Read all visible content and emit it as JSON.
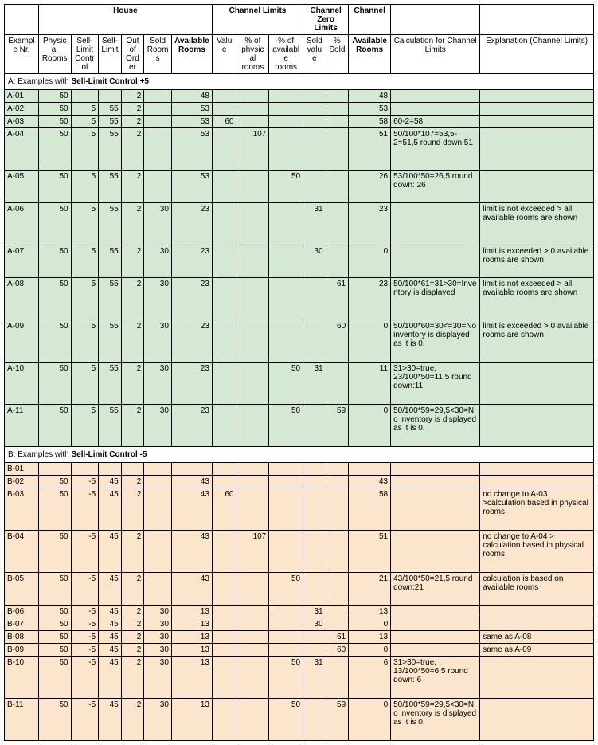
{
  "groupHeaders": {
    "house": "House",
    "channelLimits": "Channel Limits",
    "channelZeroLimits": "Channel Zero Limits",
    "channel": "Channel"
  },
  "columnHeaders": {
    "exampleNr": "Example Nr.",
    "physicalRooms": "Physical Rooms",
    "sellLimitControl": "Sell-Limit Control",
    "sellLimit": "Sell-Limit",
    "outOfOrder": "Out of Order",
    "soldRooms": "Sold Rooms",
    "availableRooms": "Available Rooms",
    "value": "Value",
    "pctOfPhysical": "% of physical rooms",
    "pctOfAvailable": "% of available rooms",
    "soldValue": "Sold value",
    "pctSold": "% Sold",
    "availableRoomsCh": "Available Rooms",
    "calculation": "Calculation for Channel Limits",
    "explanation": "Explanation (Channel Limits)"
  },
  "sectionA": {
    "title": "A: Examples with",
    "titleBold": "Sell-Limit Control +5"
  },
  "sectionB": {
    "title": "B: Examples with",
    "titleBold": "Sell-Limit Control -5"
  },
  "rowsA": [
    {
      "id": "A-01",
      "pr": "50",
      "slc": "",
      "sl": "",
      "ooo": "2",
      "sr": "",
      "ar": "48",
      "v": "",
      "pp": "",
      "pa": "",
      "sv": "",
      "ps": "",
      "arc": "48",
      "calc": "",
      "exp": ""
    },
    {
      "id": "A-02",
      "pr": "50",
      "slc": "5",
      "sl": "55",
      "ooo": "2",
      "sr": "",
      "ar": "53",
      "v": "",
      "pp": "",
      "pa": "",
      "sv": "",
      "ps": "",
      "arc": "53",
      "calc": "",
      "exp": ""
    },
    {
      "id": "A-03",
      "pr": "50",
      "slc": "5",
      "sl": "55",
      "ooo": "2",
      "sr": "",
      "ar": "53",
      "v": "60",
      "pp": "",
      "pa": "",
      "sv": "",
      "ps": "",
      "arc": "58",
      "calc": "60-2=58",
      "exp": ""
    },
    {
      "id": "A-04",
      "pr": "50",
      "slc": "5",
      "sl": "55",
      "ooo": "2",
      "sr": "",
      "ar": "53",
      "v": "",
      "pp": "107",
      "pa": "",
      "sv": "",
      "ps": "",
      "arc": "51",
      "calc": "50/100*107=53,5-2=51,5  round down:51",
      "exp": ""
    },
    {
      "id": "A-05",
      "pr": "50",
      "slc": "5",
      "sl": "55",
      "ooo": "2",
      "sr": "",
      "ar": "53",
      "v": "",
      "pp": "",
      "pa": "50",
      "sv": "",
      "ps": "",
      "arc": "26",
      "calc": "53/100*50=26,5 round down: 26",
      "exp": ""
    },
    {
      "id": "A-06",
      "pr": "50",
      "slc": "5",
      "sl": "55",
      "ooo": "2",
      "sr": "30",
      "ar": "23",
      "v": "",
      "pp": "",
      "pa": "",
      "sv": "31",
      "ps": "",
      "arc": "23",
      "calc": "",
      "exp": "limit is not exceeded > all available rooms are shown"
    },
    {
      "id": "A-07",
      "pr": "50",
      "slc": "5",
      "sl": "55",
      "ooo": "2",
      "sr": "30",
      "ar": "23",
      "v": "",
      "pp": "",
      "pa": "",
      "sv": "30",
      "ps": "",
      "arc": "0",
      "calc": "",
      "exp": "limit is exceeded > 0 available rooms are shown"
    },
    {
      "id": "A-08",
      "pr": "50",
      "slc": "5",
      "sl": "55",
      "ooo": "2",
      "sr": "30",
      "ar": "23",
      "v": "",
      "pp": "",
      "pa": "",
      "sv": "",
      "ps": "61",
      "arc": "23",
      "calc": "50/100*61=31>30=Inventory is displayed",
      "exp": "limit is not exceeded > all available rooms are shown"
    },
    {
      "id": "A-09",
      "pr": "50",
      "slc": "5",
      "sl": "55",
      "ooo": "2",
      "sr": "30",
      "ar": "23",
      "v": "",
      "pp": "",
      "pa": "",
      "sv": "",
      "ps": "60",
      "arc": "0",
      "calc": "50/100*60=30<=30=No inventory is displayed as it is 0.",
      "exp": "limit  is exceeded > 0 available rooms are shown"
    },
    {
      "id": "A-10",
      "pr": "50",
      "slc": "5",
      "sl": "55",
      "ooo": "2",
      "sr": "30",
      "ar": "23",
      "v": "",
      "pp": "",
      "pa": "50",
      "sv": "31",
      "ps": "",
      "arc": "11",
      "calc": "31>30=true, 23/100*50=11,5 round down:11",
      "exp": ""
    },
    {
      "id": "A-11",
      "pr": "50",
      "slc": "5",
      "sl": "55",
      "ooo": "2",
      "sr": "30",
      "ar": "23",
      "v": "",
      "pp": "",
      "pa": "50",
      "sv": "",
      "ps": "59",
      "arc": "0",
      "calc": "50/100*59=29,5<30=No inventory is displayed as it is 0.",
      "exp": ""
    }
  ],
  "rowsB": [
    {
      "id": "B-01",
      "pr": "",
      "slc": "",
      "sl": "",
      "ooo": "",
      "sr": "",
      "ar": "",
      "v": "",
      "pp": "",
      "pa": "",
      "sv": "",
      "ps": "",
      "arc": "",
      "calc": "",
      "exp": ""
    },
    {
      "id": "B-02",
      "pr": "50",
      "slc": "-5",
      "sl": "45",
      "ooo": "2",
      "sr": "",
      "ar": "43",
      "v": "",
      "pp": "",
      "pa": "",
      "sv": "",
      "ps": "",
      "arc": "43",
      "calc": "",
      "exp": ""
    },
    {
      "id": "B-03",
      "pr": "50",
      "slc": "-5",
      "sl": "45",
      "ooo": "2",
      "sr": "",
      "ar": "43",
      "v": "60",
      "pp": "",
      "pa": "",
      "sv": "",
      "ps": "",
      "arc": "58",
      "calc": "",
      "exp": "no change to A-03 >calculation based in physical rooms"
    },
    {
      "id": "B-04",
      "pr": "50",
      "slc": "-5",
      "sl": "45",
      "ooo": "2",
      "sr": "",
      "ar": "43",
      "v": "",
      "pp": "107",
      "pa": "",
      "sv": "",
      "ps": "",
      "arc": "51",
      "calc": "",
      "exp": "no change to A-04 > calculation based in physical rooms"
    },
    {
      "id": "B-05",
      "pr": "50",
      "slc": "-5",
      "sl": "45",
      "ooo": "2",
      "sr": "",
      "ar": "43",
      "v": "",
      "pp": "",
      "pa": "50",
      "sv": "",
      "ps": "",
      "arc": "21",
      "calc": "43/100*50=21,5 round down:21",
      "exp": "calculation is based on available rooms"
    },
    {
      "id": "B-06",
      "pr": "50",
      "slc": "-5",
      "sl": "45",
      "ooo": "2",
      "sr": "30",
      "ar": "13",
      "v": "",
      "pp": "",
      "pa": "",
      "sv": "31",
      "ps": "",
      "arc": "13",
      "calc": "",
      "exp": ""
    },
    {
      "id": "B-07",
      "pr": "50",
      "slc": "-5",
      "sl": "45",
      "ooo": "2",
      "sr": "30",
      "ar": "13",
      "v": "",
      "pp": "",
      "pa": "",
      "sv": "30",
      "ps": "",
      "arc": "0",
      "calc": "",
      "exp": ""
    },
    {
      "id": "B-08",
      "pr": "50",
      "slc": "-5",
      "sl": "45",
      "ooo": "2",
      "sr": "30",
      "ar": "13",
      "v": "",
      "pp": "",
      "pa": "",
      "sv": "",
      "ps": "61",
      "arc": "13",
      "calc": "",
      "exp": "same as A-08"
    },
    {
      "id": "B-09",
      "pr": "50",
      "slc": "-5",
      "sl": "45",
      "ooo": "2",
      "sr": "30",
      "ar": "13",
      "v": "",
      "pp": "",
      "pa": "",
      "sv": "",
      "ps": "60",
      "arc": "0",
      "calc": "",
      "exp": "same as A-09"
    },
    {
      "id": "B-10",
      "pr": "50",
      "slc": "-5",
      "sl": "45",
      "ooo": "2",
      "sr": "30",
      "ar": "13",
      "v": "",
      "pp": "",
      "pa": "50",
      "sv": "31",
      "ps": "",
      "arc": "6",
      "calc": "31>30=true, 13/100*50=6,5 round down: 6",
      "exp": ""
    },
    {
      "id": "B-11",
      "pr": "50",
      "slc": "-5",
      "sl": "45",
      "ooo": "2",
      "sr": "30",
      "ar": "13",
      "v": "",
      "pp": "",
      "pa": "50",
      "sv": "",
      "ps": "59",
      "arc": "0",
      "calc": "50/100*59=29,5<30=No inventory is displayed as it is 0.",
      "exp": ""
    }
  ],
  "colWidths": {
    "c1": "42",
    "c2": "40",
    "c3": "34",
    "c4": "28",
    "c5": "28",
    "c6": "34",
    "c7": "50",
    "c8": "30",
    "c9": "40",
    "c10": "42",
    "c11": "28",
    "c12": "28",
    "c13": "52",
    "c14": "110",
    "c15": "140"
  }
}
